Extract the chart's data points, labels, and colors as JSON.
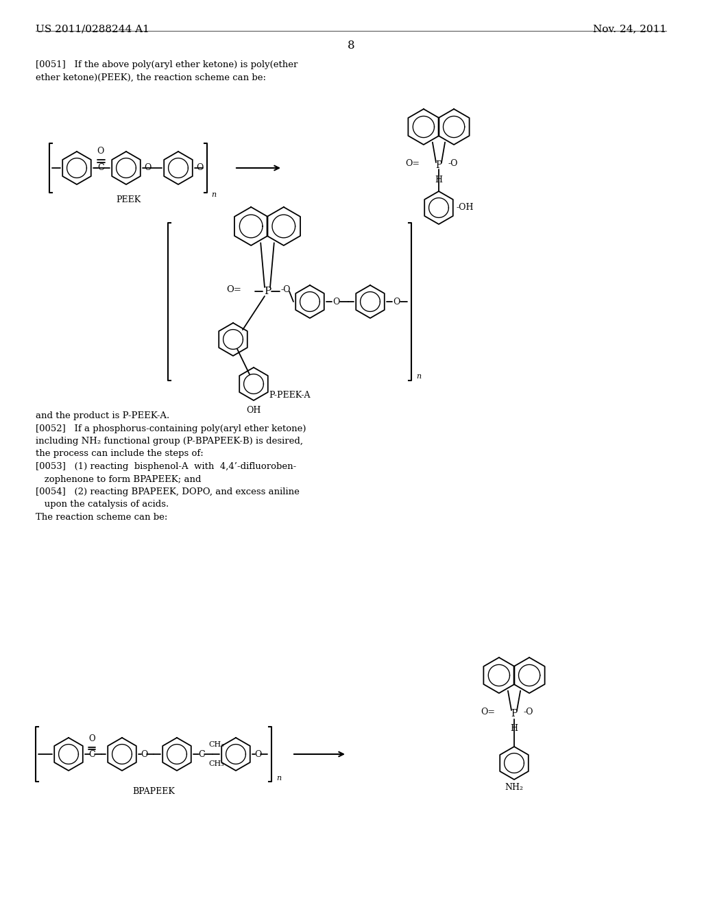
{
  "bg_color": "#ffffff",
  "header_left": "US 2011/0288244 A1",
  "header_right": "Nov. 24, 2011",
  "page_number": "8",
  "para_0051": "[0051]   If the above poly(aryl ether ketone) is poly(ether\nether ketone)(PEEK), the reaction scheme can be:",
  "label_peek": "PEEK",
  "label_ppeeka": "P-PEEK-A",
  "body_text": "and the product is P-PEEK-A.\n[0052]   If a phosphorus-containing poly(aryl ether ketone)\nincluding NH₂ functional group (P-BPAPEEK-B) is desired,\nthe process can include the steps of:\n[0053]   (1) reacting  bisphenol-A  with  4,4’-difluoroben-\n   zophenone to form BPAPEEK; and\n[0054]   (2) reacting BPAPEEK, DOPO, and excess aniline\n   upon the catalysis of acids.\nThe reaction scheme can be:",
  "label_bpapeek": "BPAPEEK"
}
